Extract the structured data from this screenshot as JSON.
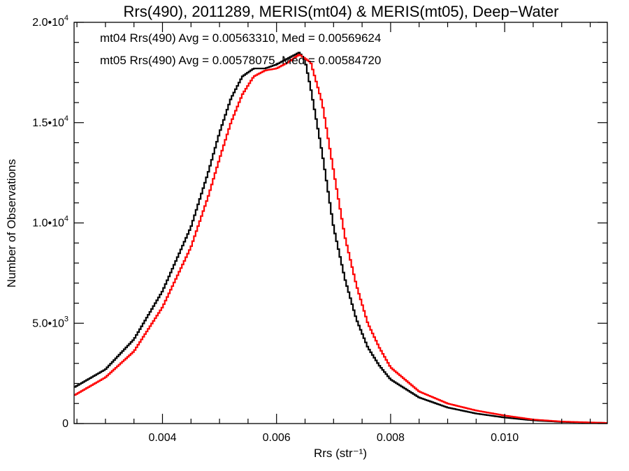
{
  "chart_data": {
    "type": "line",
    "title": "Rrs(490), 2011289, MERIS(mt04) & MERIS(mt05), Deep−Water",
    "xlabel": "Rrs (str⁻¹)",
    "ylabel": "Number of Observations",
    "xlim": [
      0.00245,
      0.0118
    ],
    "ylim": [
      0,
      20000
    ],
    "x_ticks": [
      {
        "value": 0.004,
        "label": "0.004"
      },
      {
        "value": 0.006,
        "label": "0.006"
      },
      {
        "value": 0.008,
        "label": "0.008"
      },
      {
        "value": 0.01,
        "label": "0.010"
      }
    ],
    "y_ticks": [
      {
        "value": 0,
        "label": "0",
        "exp": ""
      },
      {
        "value": 5000,
        "label": "5.0•10",
        "exp": "3"
      },
      {
        "value": 10000,
        "label": "1.0•10",
        "exp": "4"
      },
      {
        "value": 15000,
        "label": "1.5•10",
        "exp": "4"
      },
      {
        "value": 20000,
        "label": "2.0•10",
        "exp": "4"
      }
    ],
    "grid": false,
    "legend_position": "top-left",
    "series": [
      {
        "name": "mt04",
        "color": "#000000",
        "annotation": "mt04 Rrs(490) Avg = 0.00563310, Med = 0.00569624",
        "points": [
          [
            0.00245,
            1800
          ],
          [
            0.003,
            2700
          ],
          [
            0.0035,
            4200
          ],
          [
            0.004,
            6600
          ],
          [
            0.0045,
            9800
          ],
          [
            0.0048,
            12500
          ],
          [
            0.005,
            14500
          ],
          [
            0.0052,
            16200
          ],
          [
            0.0054,
            17300
          ],
          [
            0.0056,
            17700
          ],
          [
            0.0058,
            17700
          ],
          [
            0.006,
            17900
          ],
          [
            0.0062,
            18200
          ],
          [
            0.0064,
            18500
          ],
          [
            0.0065,
            18100
          ],
          [
            0.0066,
            16700
          ],
          [
            0.0068,
            13500
          ],
          [
            0.007,
            9800
          ],
          [
            0.0072,
            7200
          ],
          [
            0.0074,
            5200
          ],
          [
            0.0076,
            3800
          ],
          [
            0.0078,
            2900
          ],
          [
            0.008,
            2200
          ],
          [
            0.0085,
            1300
          ],
          [
            0.009,
            800
          ],
          [
            0.0095,
            500
          ],
          [
            0.01,
            300
          ],
          [
            0.0105,
            160
          ],
          [
            0.011,
            80
          ],
          [
            0.0118,
            30
          ]
        ]
      },
      {
        "name": "mt05",
        "color": "#ff0000",
        "annotation": "mt05 Rrs(490) Avg = 0.00578075, Med = 0.00584720",
        "points": [
          [
            0.00245,
            1400
          ],
          [
            0.003,
            2300
          ],
          [
            0.0035,
            3600
          ],
          [
            0.004,
            5800
          ],
          [
            0.0045,
            8800
          ],
          [
            0.0048,
            11300
          ],
          [
            0.005,
            13200
          ],
          [
            0.0052,
            15000
          ],
          [
            0.0054,
            16400
          ],
          [
            0.0056,
            17300
          ],
          [
            0.0058,
            17600
          ],
          [
            0.006,
            17700
          ],
          [
            0.0062,
            18000
          ],
          [
            0.0064,
            18400
          ],
          [
            0.0066,
            18000
          ],
          [
            0.0068,
            16000
          ],
          [
            0.007,
            12600
          ],
          [
            0.0072,
            9300
          ],
          [
            0.0074,
            6900
          ],
          [
            0.0076,
            5000
          ],
          [
            0.0078,
            3800
          ],
          [
            0.008,
            2800
          ],
          [
            0.0085,
            1600
          ],
          [
            0.009,
            1000
          ],
          [
            0.0095,
            650
          ],
          [
            0.01,
            400
          ],
          [
            0.0105,
            200
          ],
          [
            0.011,
            100
          ],
          [
            0.0118,
            30
          ]
        ]
      }
    ]
  }
}
